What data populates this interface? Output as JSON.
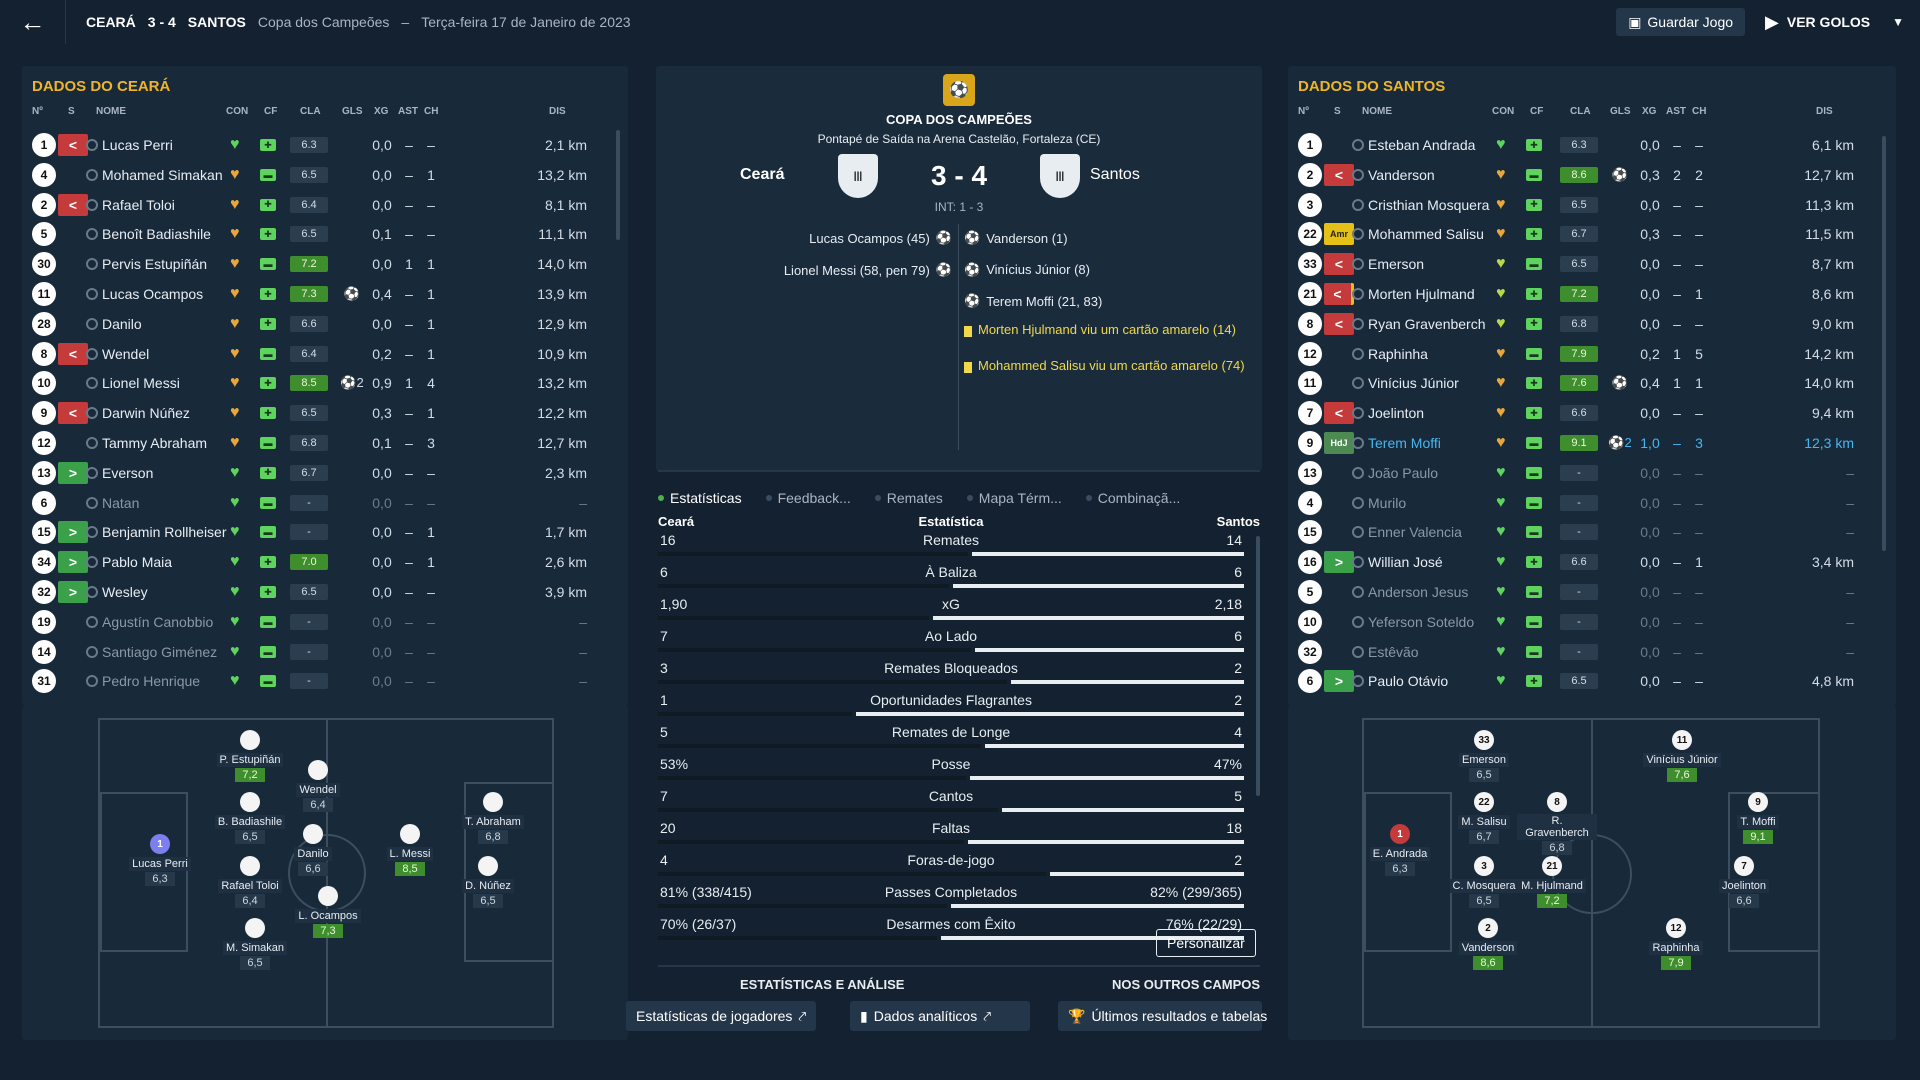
{
  "topbar": {
    "back_icon": "arrow-left-icon",
    "home": "CEARÁ",
    "score": "3 - 4",
    "away": "SANTOS",
    "competition": "Copa dos Campeões",
    "sep": "–",
    "date": "Terça-feira 17 de Janeiro de 2023",
    "save_label": "Guardar Jogo",
    "goals_label": "VER GOLOS"
  },
  "headers": {
    "num": "Nº",
    "s": "S",
    "nome": "NOME",
    "con": "CON",
    "cf": "CF",
    "cla": "CLA",
    "gls": "GLS",
    "xg": "XG",
    "ast": "AST",
    "ch": "CH",
    "dis": "DIS"
  },
  "left": {
    "title": "DADOS DO CEARÁ",
    "players": [
      {
        "n": "1",
        "s": "off",
        "name": "Lucas Perri",
        "con": "g",
        "cf": "g",
        "cla": "6.3",
        "hi": false,
        "gls": "",
        "xg": "0,0",
        "ast": "–",
        "ch": "–",
        "dis": "2,1 km"
      },
      {
        "n": "4",
        "s": "",
        "name": "Mohamed Simakan",
        "con": "o",
        "cf": "g",
        "cla": "6.5",
        "hi": false,
        "gls": "",
        "xg": "0,0",
        "ast": "–",
        "ch": "1",
        "dis": "13,2 km"
      },
      {
        "n": "2",
        "s": "off",
        "name": "Rafael Toloi",
        "con": "o",
        "cf": "g",
        "cla": "6.4",
        "hi": false,
        "gls": "",
        "xg": "0,0",
        "ast": "–",
        "ch": "–",
        "dis": "8,1 km"
      },
      {
        "n": "5",
        "s": "",
        "name": "Benoît Badiashile",
        "con": "o",
        "cf": "g",
        "cla": "6.5",
        "hi": false,
        "gls": "",
        "xg": "0,1",
        "ast": "–",
        "ch": "–",
        "dis": "11,1 km"
      },
      {
        "n": "30",
        "s": "",
        "name": "Pervis Estupiñán",
        "con": "o",
        "cf": "g",
        "cla": "7.2",
        "hi": true,
        "gls": "",
        "xg": "0,0",
        "ast": "1",
        "ch": "1",
        "dis": "14,0 km"
      },
      {
        "n": "11",
        "s": "",
        "name": "Lucas Ocampos",
        "con": "o",
        "cf": "g",
        "cla": "7.3",
        "hi": true,
        "gls": "⚽",
        "xg": "0,4",
        "ast": "–",
        "ch": "1",
        "dis": "13,9 km"
      },
      {
        "n": "28",
        "s": "",
        "name": "Danilo",
        "con": "o",
        "cf": "g",
        "cla": "6.6",
        "hi": false,
        "gls": "",
        "xg": "0,0",
        "ast": "–",
        "ch": "1",
        "dis": "12,9 km"
      },
      {
        "n": "8",
        "s": "off",
        "name": "Wendel",
        "con": "o",
        "cf": "g",
        "cla": "6.4",
        "hi": false,
        "gls": "",
        "xg": "0,2",
        "ast": "–",
        "ch": "1",
        "dis": "10,9 km"
      },
      {
        "n": "10",
        "s": "",
        "name": "Lionel Messi",
        "con": "o",
        "cf": "g",
        "cla": "8.5",
        "hi": true,
        "gls": "⚽2",
        "xg": "0,9",
        "ast": "1",
        "ch": "4",
        "dis": "13,2 km"
      },
      {
        "n": "9",
        "s": "off",
        "name": "Darwin Núñez",
        "con": "o",
        "cf": "g",
        "cla": "6.5",
        "hi": false,
        "gls": "",
        "xg": "0,3",
        "ast": "–",
        "ch": "1",
        "dis": "12,2 km"
      },
      {
        "n": "12",
        "s": "",
        "name": "Tammy Abraham",
        "con": "o",
        "cf": "g",
        "cla": "6.8",
        "hi": false,
        "gls": "",
        "xg": "0,1",
        "ast": "–",
        "ch": "3",
        "dis": "12,7 km"
      },
      {
        "n": "13",
        "s": "on",
        "name": "Everson",
        "con": "g",
        "cf": "g",
        "cla": "6.7",
        "hi": false,
        "gls": "",
        "xg": "0,0",
        "ast": "–",
        "ch": "–",
        "dis": "2,3 km"
      },
      {
        "n": "6",
        "s": "",
        "name": "Natan",
        "con": "g",
        "cf": "g",
        "cla": "-",
        "hi": false,
        "gls": "",
        "xg": "0,0",
        "ast": "–",
        "ch": "–",
        "dis": "–",
        "unused": true
      },
      {
        "n": "15",
        "s": "on",
        "name": "Benjamin Rollheiser",
        "con": "g",
        "cf": "g",
        "cla": "-",
        "hi": false,
        "gls": "",
        "xg": "0,0",
        "ast": "–",
        "ch": "1",
        "dis": "1,7 km"
      },
      {
        "n": "34",
        "s": "on",
        "name": "Pablo Maia",
        "con": "g",
        "cf": "g",
        "cla": "7.0",
        "hi": true,
        "gls": "",
        "xg": "0,0",
        "ast": "–",
        "ch": "1",
        "dis": "2,6 km"
      },
      {
        "n": "32",
        "s": "on",
        "name": "Wesley",
        "con": "g",
        "cf": "g",
        "cla": "6.5",
        "hi": false,
        "gls": "",
        "xg": "0,0",
        "ast": "–",
        "ch": "–",
        "dis": "3,9 km"
      },
      {
        "n": "19",
        "s": "",
        "name": "Agustín Canobbio",
        "con": "g",
        "cf": "g",
        "cla": "-",
        "hi": false,
        "gls": "",
        "xg": "0,0",
        "ast": "–",
        "ch": "–",
        "dis": "–",
        "unused": true
      },
      {
        "n": "14",
        "s": "",
        "name": "Santiago Giménez",
        "con": "g",
        "cf": "g",
        "cla": "-",
        "hi": false,
        "gls": "",
        "xg": "0,0",
        "ast": "–",
        "ch": "–",
        "dis": "–",
        "unused": true
      },
      {
        "n": "31",
        "s": "",
        "name": "Pedro Henrique",
        "con": "g",
        "cf": "g",
        "cla": "-",
        "hi": false,
        "gls": "",
        "xg": "0,0",
        "ast": "–",
        "ch": "–",
        "dis": "–",
        "unused": true
      }
    ],
    "formation": [
      {
        "name": "Lucas Perri",
        "rt": "6,3",
        "hi": false,
        "dot": "1",
        "sel": true
      },
      {
        "name": "P. Estupiñán",
        "rt": "7,2",
        "hi": true
      },
      {
        "name": "B. Badiashile",
        "rt": "6,5",
        "hi": false
      },
      {
        "name": "Rafael Toloi",
        "rt": "6,4",
        "hi": false
      },
      {
        "name": "M. Simakan",
        "rt": "6,5",
        "hi": false
      },
      {
        "name": "Wendel",
        "rt": "6,4",
        "hi": false
      },
      {
        "name": "Danilo",
        "rt": "6,6",
        "hi": false
      },
      {
        "name": "L. Ocampos",
        "rt": "7,3",
        "hi": true
      },
      {
        "name": "L. Messi",
        "rt": "8,5",
        "hi": true
      },
      {
        "name": "T. Abraham",
        "rt": "6,8",
        "hi": false
      },
      {
        "name": "D. Núñez",
        "rt": "6,5",
        "hi": false
      }
    ]
  },
  "right": {
    "title": "DADOS DO SANTOS",
    "players": [
      {
        "n": "1",
        "s": "",
        "name": "Esteban Andrada",
        "con": "g",
        "cf": "g",
        "cla": "6.3",
        "hi": false,
        "gls": "",
        "xg": "0,0",
        "ast": "–",
        "ch": "–",
        "dis": "6,1 km"
      },
      {
        "n": "2",
        "s": "off",
        "name": "Vanderson",
        "con": "o",
        "cf": "g",
        "cla": "8.6",
        "hi": true,
        "gls": "⚽",
        "xg": "0,3",
        "ast": "2",
        "ch": "2",
        "dis": "12,7 km"
      },
      {
        "n": "3",
        "s": "",
        "name": "Cristhian Mosquera",
        "con": "o",
        "cf": "g",
        "cla": "6.5",
        "hi": false,
        "gls": "",
        "xg": "0,0",
        "ast": "–",
        "ch": "–",
        "dis": "11,3 km"
      },
      {
        "n": "22",
        "s": "amr",
        "name": "Mohammed Salisu",
        "con": "o",
        "cf": "g",
        "cla": "6.7",
        "hi": false,
        "gls": "",
        "xg": "0,3",
        "ast": "–",
        "ch": "–",
        "dis": "11,5 km"
      },
      {
        "n": "33",
        "s": "off",
        "name": "Emerson",
        "con": "y",
        "cf": "g",
        "cla": "6.5",
        "hi": false,
        "gls": "",
        "xg": "0,0",
        "ast": "–",
        "ch": "–",
        "dis": "8,7 km"
      },
      {
        "n": "21",
        "s": "offamr",
        "name": "Morten Hjulmand",
        "con": "y",
        "cf": "g",
        "cla": "7.2",
        "hi": true,
        "gls": "",
        "xg": "0,0",
        "ast": "–",
        "ch": "1",
        "dis": "8,6 km"
      },
      {
        "n": "8",
        "s": "off",
        "name": "Ryan Gravenberch",
        "con": "y",
        "cf": "g",
        "cla": "6.8",
        "hi": false,
        "gls": "",
        "xg": "0,0",
        "ast": "–",
        "ch": "–",
        "dis": "9,0 km"
      },
      {
        "n": "12",
        "s": "",
        "name": "Raphinha",
        "con": "o",
        "cf": "g",
        "cla": "7.9",
        "hi": true,
        "gls": "",
        "xg": "0,2",
        "ast": "1",
        "ch": "5",
        "dis": "14,2 km"
      },
      {
        "n": "11",
        "s": "",
        "name": "Vinícius Júnior",
        "con": "o",
        "cf": "g",
        "cla": "7.6",
        "hi": true,
        "gls": "⚽",
        "xg": "0,4",
        "ast": "1",
        "ch": "1",
        "dis": "14,0 km"
      },
      {
        "n": "7",
        "s": "off",
        "name": "Joelinton",
        "con": "o",
        "cf": "g",
        "cla": "6.6",
        "hi": false,
        "gls": "",
        "xg": "0,0",
        "ast": "–",
        "ch": "–",
        "dis": "9,4 km"
      },
      {
        "n": "9",
        "s": "hdj",
        "name": "Terem Moffi",
        "con": "o",
        "cf": "g",
        "cla": "9.1",
        "hi": true,
        "gls": "⚽2",
        "xg": "1,0",
        "ast": "–",
        "ch": "3",
        "dis": "12,3 km",
        "motm": true
      },
      {
        "n": "13",
        "s": "",
        "name": "João Paulo",
        "con": "g",
        "cf": "g",
        "cla": "-",
        "hi": false,
        "gls": "",
        "xg": "0,0",
        "ast": "–",
        "ch": "–",
        "dis": "–",
        "unused": true
      },
      {
        "n": "4",
        "s": "",
        "name": "Murilo",
        "con": "g",
        "cf": "g",
        "cla": "-",
        "hi": false,
        "gls": "",
        "xg": "0,0",
        "ast": "–",
        "ch": "–",
        "dis": "–",
        "unused": true
      },
      {
        "n": "15",
        "s": "",
        "name": "Enner Valencia",
        "con": "g",
        "cf": "g",
        "cla": "-",
        "hi": false,
        "gls": "",
        "xg": "0,0",
        "ast": "–",
        "ch": "–",
        "dis": "–",
        "unused": true
      },
      {
        "n": "16",
        "s": "on",
        "name": "Willian José",
        "con": "g",
        "cf": "g",
        "cla": "6.6",
        "hi": false,
        "gls": "",
        "xg": "0,0",
        "ast": "–",
        "ch": "1",
        "dis": "3,4 km"
      },
      {
        "n": "5",
        "s": "",
        "name": "Anderson Jesus",
        "con": "g",
        "cf": "g",
        "cla": "-",
        "hi": false,
        "gls": "",
        "xg": "0,0",
        "ast": "–",
        "ch": "–",
        "dis": "–",
        "unused": true
      },
      {
        "n": "10",
        "s": "",
        "name": "Yeferson Soteldo",
        "con": "g",
        "cf": "g",
        "cla": "-",
        "hi": false,
        "gls": "",
        "xg": "0,0",
        "ast": "–",
        "ch": "–",
        "dis": "–",
        "unused": true
      },
      {
        "n": "32",
        "s": "",
        "name": "Estêvão",
        "con": "g",
        "cf": "g",
        "cla": "-",
        "hi": false,
        "gls": "",
        "xg": "0,0",
        "ast": "–",
        "ch": "–",
        "dis": "–",
        "unused": true
      },
      {
        "n": "6",
        "s": "on",
        "name": "Paulo Otávio",
        "con": "g",
        "cf": "g",
        "cla": "6.5",
        "hi": false,
        "gls": "",
        "xg": "0,0",
        "ast": "–",
        "ch": "–",
        "dis": "4,8 km"
      }
    ],
    "formation": [
      {
        "name": "E. Andrada",
        "rt": "6,3",
        "hi": false,
        "dot": "1",
        "red": true
      },
      {
        "name": "Emerson",
        "rt": "6,5",
        "hi": false,
        "dot": "33"
      },
      {
        "name": "M. Salisu",
        "rt": "6,7",
        "hi": false,
        "dot": "22"
      },
      {
        "name": "C. Mosquera",
        "rt": "6,5",
        "hi": false,
        "dot": "3"
      },
      {
        "name": "Vanderson",
        "rt": "8,6",
        "hi": true,
        "dot": "2"
      },
      {
        "name": "R. Gravenberch",
        "rt": "6,8",
        "hi": false,
        "dot": "8"
      },
      {
        "name": "M. Hjulmand",
        "rt": "7,2",
        "hi": true,
        "dot": "21"
      },
      {
        "name": "Vinícius Júnior",
        "rt": "7,6",
        "hi": true,
        "dot": "11"
      },
      {
        "name": "T. Moffi",
        "rt": "9,1",
        "hi": true,
        "dot": "9"
      },
      {
        "name": "Joelinton",
        "rt": "6,6",
        "hi": false,
        "dot": "7"
      },
      {
        "name": "Raphinha",
        "rt": "7,9",
        "hi": true,
        "dot": "12"
      }
    ]
  },
  "match": {
    "competition": "COPA DOS CAMPEÕES",
    "venue": "Pontapé de Saída na Arena Castelão, Fortaleza (CE)",
    "home": "Ceará",
    "away": "Santos",
    "score": "3 - 4",
    "ht": "INT: 1 - 3",
    "home_events": [
      "Lucas Ocampos (45)",
      "Lionel Messi (58, pen 79)"
    ],
    "away_events": [
      "Vanderson (1)",
      "Vinícius Júnior (8)",
      "Terem Moffi (21, 83)"
    ],
    "cards": [
      "Morten Hjulmand viu um cartão amarelo (14)",
      "Mohammed Salisu viu um cartão amarelo (74)"
    ]
  },
  "tabs": [
    "Estatísticas",
    "Feedback...",
    "Remates",
    "Mapa Térm...",
    "Combinaçã..."
  ],
  "stats_header": {
    "home": "Ceará",
    "mid": "Estatística",
    "away": "Santos"
  },
  "stats": [
    {
      "label": "Remates",
      "h": "16",
      "a": "14",
      "hv": 16,
      "av": 14
    },
    {
      "label": "À Baliza",
      "h": "6",
      "a": "6",
      "hv": 6,
      "av": 6
    },
    {
      "label": "xG",
      "h": "1,90",
      "a": "2,18",
      "hv": 1.9,
      "av": 2.18
    },
    {
      "label": "Ao Lado",
      "h": "7",
      "a": "6",
      "hv": 7,
      "av": 6
    },
    {
      "label": "Remates Bloqueados",
      "h": "3",
      "a": "2",
      "hv": 3,
      "av": 2
    },
    {
      "label": "Oportunidades Flagrantes",
      "h": "1",
      "a": "2",
      "hv": 1,
      "av": 2
    },
    {
      "label": "Remates de Longe",
      "h": "5",
      "a": "4",
      "hv": 5,
      "av": 4
    },
    {
      "label": "Posse",
      "h": "53%",
      "a": "47%",
      "hv": 53,
      "av": 47
    },
    {
      "label": "Cantos",
      "h": "7",
      "a": "5",
      "hv": 7,
      "av": 5
    },
    {
      "label": "Faltas",
      "h": "20",
      "a": "18",
      "hv": 20,
      "av": 18
    },
    {
      "label": "Foras-de-jogo",
      "h": "4",
      "a": "2",
      "hv": 4,
      "av": 2
    },
    {
      "label": "Passes Completados",
      "h": "81% (338/415)",
      "a": "82% (299/365)",
      "hv": 81,
      "av": 82
    },
    {
      "label": "Desarmes com Êxito",
      "h": "70% (26/37)",
      "a": "76% (22/29)",
      "hv": 70,
      "av": 76
    }
  ],
  "personalize": "Personalizar",
  "footer": {
    "stats_title": "ESTATÍSTICAS E ANÁLISE",
    "other_title": "NOS OUTROS CAMPOS",
    "btn1": "Estatísticas de jogadores",
    "btn2": "Dados analíticos",
    "btn3": "Últimos resultados e tabelas"
  },
  "colors": {
    "accent": "#f0b429",
    "good": "#3aa04a",
    "bad": "#c53a3a",
    "yellow_card": "#f0d84a"
  }
}
